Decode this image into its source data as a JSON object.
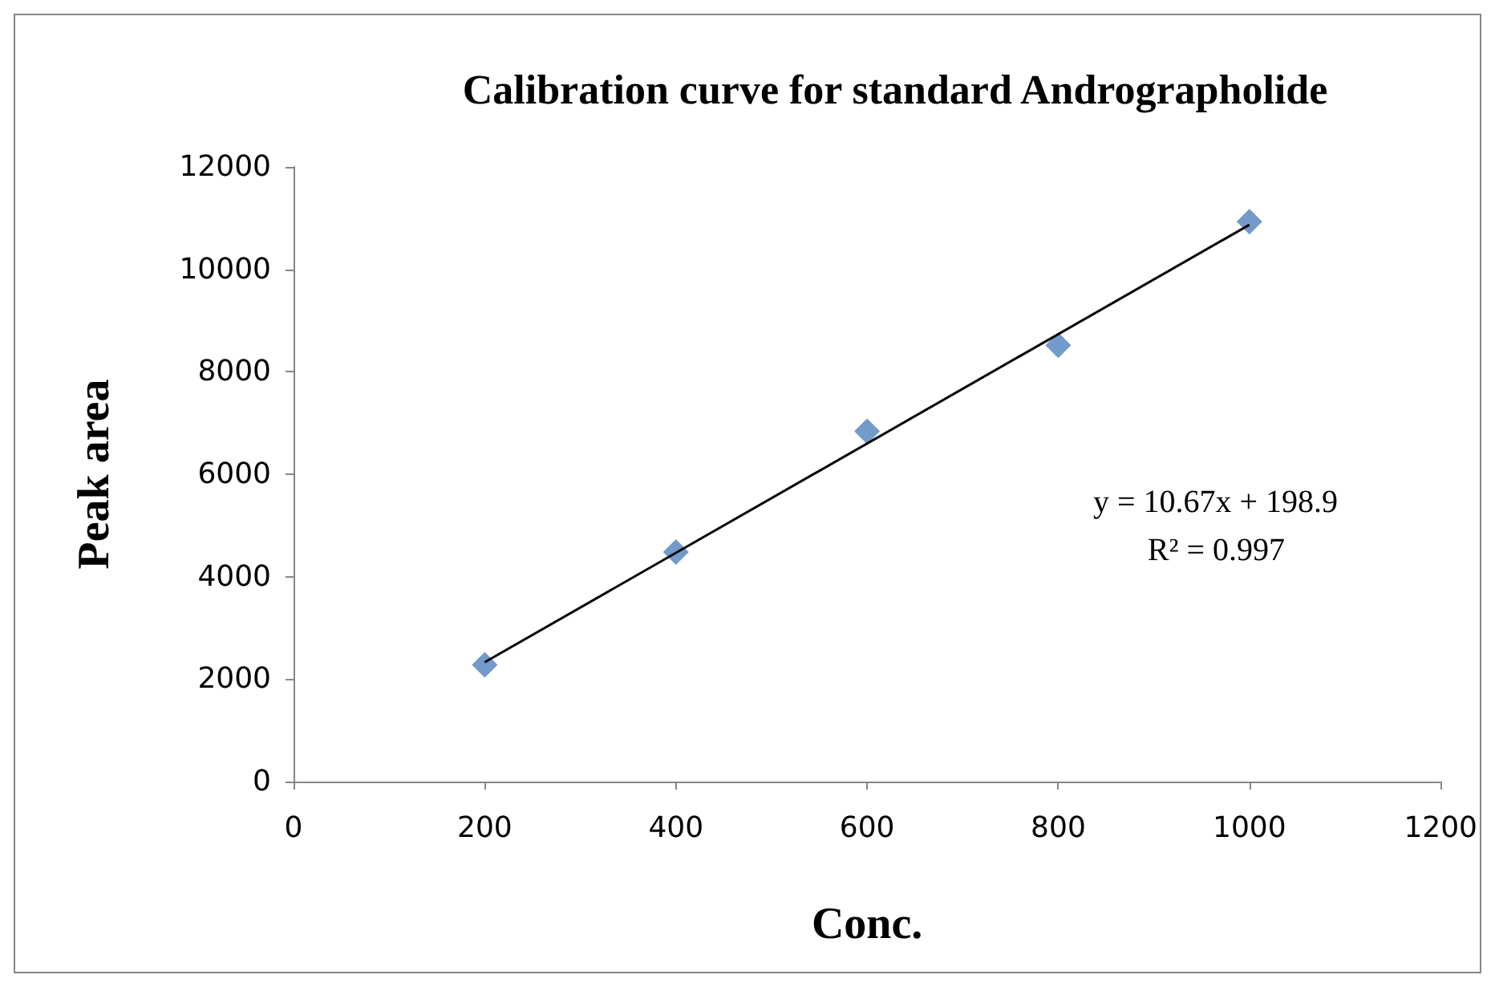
{
  "chart_data": {
    "type": "scatter",
    "title": "Calibration curve for standard Andrographolide",
    "xlabel": "Conc.",
    "ylabel": "Peak area",
    "xlim": [
      0,
      1200
    ],
    "xticks": [
      0,
      200,
      400,
      600,
      800,
      1000,
      1200
    ],
    "ylim": [
      0,
      12000
    ],
    "yticks": [
      0,
      2000,
      4000,
      6000,
      8000,
      10000,
      12000
    ],
    "grid": false,
    "series": [
      {
        "color": "#4f81bd",
        "marker": "diamond",
        "x": [
          200,
          400,
          600,
          800,
          1000
        ],
        "values": [
          2280,
          4480,
          6840,
          8520,
          10930
        ]
      },
      {
        "type": "line",
        "color": "#000000",
        "marker": "none",
        "x": [
          200,
          1000
        ],
        "values": [
          2330,
          10870
        ]
      }
    ],
    "annotations": [
      "y = 10.67x + 198.9",
      "R² = 0.997"
    ]
  }
}
